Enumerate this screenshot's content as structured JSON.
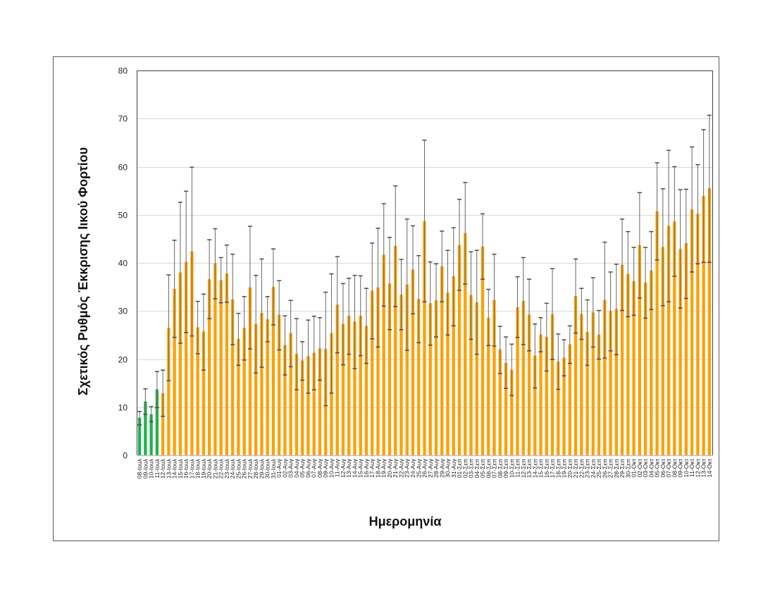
{
  "chart_data": {
    "type": "bar",
    "title": "",
    "xlabel": "Ημερομηνία",
    "ylabel": "Σχετικός Ρυθμός Έκκρισης Ιικού Φορτίου",
    "ylim": [
      0,
      80
    ],
    "yticks": [
      0,
      10,
      20,
      30,
      40,
      50,
      60,
      70,
      80
    ],
    "grid": true,
    "legend": null,
    "colors": {
      "highlight": "#22b04f",
      "default": "#ffa000",
      "error_bar": "#4a4a4a",
      "grid": "#d9d9d9",
      "axis": "#404040"
    },
    "highlight_count": 4,
    "categories": [
      "08-Ιουλ",
      "09-Ιουλ",
      "10-Ιουλ",
      "11-Ιουλ",
      "12-Ιουλ",
      "13-Ιουλ",
      "14-Ιουλ",
      "15-Ιουλ",
      "16-Ιουλ",
      "17-Ιουλ",
      "18-Ιουλ",
      "19-Ιουλ",
      "20-Ιουλ",
      "21-Ιουλ",
      "22-Ιουλ",
      "23-Ιουλ",
      "24-Ιουλ",
      "25-Ιουλ",
      "26-Ιουλ",
      "27-Ιουλ",
      "28-Ιουλ",
      "29-Ιουλ",
      "30-Ιουλ",
      "31-Ιουλ",
      "01-Αυγ",
      "02-Αυγ",
      "03-Αυγ",
      "04-Αυγ",
      "05-Αυγ",
      "06-Αυγ",
      "07-Αυγ",
      "08-Αυγ",
      "09-Αυγ",
      "10-Αυγ",
      "11-Αυγ",
      "12-Αυγ",
      "13-Αυγ",
      "14-Αυγ",
      "15-Αυγ",
      "16-Αυγ",
      "17-Αυγ",
      "18-Αυγ",
      "19-Αυγ",
      "20-Αυγ",
      "21-Αυγ",
      "22-Αυγ",
      "23-Αυγ",
      "24-Αυγ",
      "25-Αυγ",
      "26-Αυγ",
      "27-Αυγ",
      "28-Αυγ",
      "29-Αυγ",
      "30-Αυγ",
      "31-Αυγ",
      "01-Σεπ",
      "02-Σεπ",
      "03-Σεπ",
      "04-Σεπ",
      "05-Σεπ",
      "06-Σεπ",
      "07-Σεπ",
      "08-Σεπ",
      "09-Σεπ",
      "10-Σεπ",
      "11-Σεπ",
      "12-Σεπ",
      "13-Σεπ",
      "14-Σεπ",
      "15-Σεπ",
      "16-Σεπ",
      "17-Σεπ",
      "18-Σεπ",
      "19-Σεπ",
      "20-Σεπ",
      "21-Σεπ",
      "22-Σεπ",
      "23-Σεπ",
      "24-Σεπ",
      "25-Σεπ",
      "26-Σεπ",
      "27-Σεπ",
      "28-Σεπ",
      "29-Σεπ",
      "30-Σεπ",
      "01-Οκτ",
      "02-Οκτ",
      "03-Οκτ",
      "04-Οκτ",
      "05-Οκτ",
      "06-Οκτ",
      "07-Οκτ",
      "08-Οκτ",
      "09-Οκτ",
      "10-Οκτ",
      "11-Οκτ",
      "12-Οκτ",
      "13-Οκτ",
      "14-Οκτ"
    ],
    "series": [
      {
        "name": "Σχετικός Ρυθμός Έκκρισης Ιικού Φορτίου",
        "values": [
          7.8,
          11.2,
          8.5,
          13.7,
          12.9,
          26.5,
          34.6,
          38.0,
          40.2,
          42.4,
          26.6,
          25.7,
          36.6,
          39.9,
          36.4,
          37.8,
          32.4,
          24.2,
          26.5,
          34.9,
          27.3,
          29.6,
          28.3,
          35.0,
          29.2,
          22.9,
          25.4,
          21.1,
          19.7,
          20.6,
          21.3,
          22.2,
          22.1,
          25.4,
          31.3,
          27.3,
          29.0,
          27.8,
          29.0,
          26.9,
          34.2,
          34.9,
          41.7,
          35.7,
          43.5,
          33.4,
          35.5,
          38.6,
          32.5,
          48.7,
          31.6,
          32.2,
          39.3,
          33.8,
          37.2,
          43.7,
          46.2,
          33.3,
          31.8,
          43.4,
          28.6,
          32.3,
          22.0,
          19.2,
          17.8,
          30.8,
          32.1,
          29.2,
          20.7,
          25.1,
          24.6,
          29.3,
          19.5,
          20.3,
          23.1,
          33.1,
          29.4,
          25.6,
          29.7,
          25.1,
          32.3,
          30.0,
          30.4,
          39.6,
          37.7,
          36.2,
          43.7,
          35.9,
          38.4,
          50.7,
          43.3,
          47.7,
          48.6,
          42.9,
          44.1,
          51.1,
          50.2,
          53.9,
          55.5
        ],
        "error_upper": [
          9.1,
          13.8,
          10.1,
          17.4,
          17.7,
          37.5,
          44.7,
          52.6,
          54.9,
          59.9,
          32.0,
          33.5,
          44.8,
          47.1,
          41.1,
          43.7,
          41.8,
          29.5,
          33.0,
          47.6,
          37.4,
          40.8,
          33.0,
          42.9,
          36.3,
          29.0,
          32.2,
          28.4,
          23.6,
          28.1,
          28.9,
          28.6,
          33.9,
          37.7,
          41.3,
          35.7,
          36.8,
          37.4,
          37.3,
          34.7,
          44.1,
          47.2,
          52.3,
          45.3,
          56.0,
          40.7,
          49.1,
          47.7,
          41.5,
          65.5,
          40.2,
          39.8,
          46.6,
          42.6,
          47.3,
          53.2,
          56.7,
          42.3,
          42.6,
          50.2,
          34.5,
          41.8,
          26.8,
          24.6,
          23.1,
          37.1,
          41.1,
          36.6,
          27.3,
          28.6,
          31.6,
          38.8,
          25.2,
          24.0,
          26.9,
          40.8,
          34.7,
          32.3,
          36.9,
          30.1,
          44.3,
          38.1,
          39.7,
          49.1,
          46.5,
          43.2,
          54.6,
          43.2,
          46.5,
          60.8,
          55.4,
          63.4,
          60.0,
          55.2,
          55.3,
          64.1,
          60.4,
          67.7,
          70.7
        ],
        "error_lower": [
          6.3,
          8.5,
          7.0,
          9.9,
          8.1,
          15.5,
          24.5,
          23.3,
          25.5,
          24.8,
          21.1,
          17.7,
          28.4,
          32.5,
          31.7,
          31.8,
          23.0,
          18.7,
          19.8,
          22.1,
          17.1,
          18.3,
          23.6,
          27.1,
          21.9,
          16.7,
          18.4,
          13.6,
          15.6,
          12.9,
          13.6,
          15.6,
          10.3,
          12.9,
          21.3,
          18.8,
          21.0,
          18.0,
          20.7,
          19.1,
          24.2,
          22.5,
          31.0,
          26.1,
          30.9,
          26.1,
          21.8,
          29.4,
          23.4,
          31.9,
          22.9,
          24.6,
          31.9,
          25.0,
          26.9,
          34.3,
          35.6,
          24.1,
          21.0,
          36.6,
          22.8,
          22.7,
          17.0,
          13.9,
          12.4,
          24.5,
          23.0,
          21.7,
          14.0,
          21.5,
          17.5,
          19.9,
          13.7,
          16.5,
          19.1,
          25.4,
          24.1,
          18.7,
          22.5,
          20.0,
          20.2,
          21.7,
          20.9,
          30.1,
          28.8,
          29.1,
          32.7,
          28.5,
          30.3,
          40.6,
          31.1,
          31.9,
          37.2,
          30.6,
          32.6,
          38.1,
          39.8,
          40.1,
          40.1
        ]
      }
    ]
  }
}
